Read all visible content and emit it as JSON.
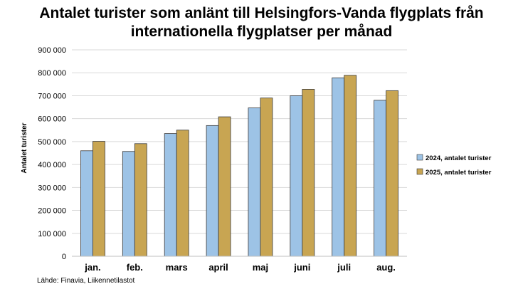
{
  "chart_data": {
    "type": "bar",
    "title": [
      "Antalet turister som anlänt till Helsingfors-Vanda flygplats från",
      "internationella flygplatser per månad"
    ],
    "xlabel": "",
    "ylabel": "Antalet turister",
    "categories": [
      "jan.",
      "feb.",
      "mars",
      "april",
      "maj",
      "juni",
      "juli",
      "aug."
    ],
    "ylim": [
      0,
      900000
    ],
    "yticks": [
      0,
      100000,
      200000,
      300000,
      400000,
      500000,
      600000,
      700000,
      800000,
      900000
    ],
    "ytick_labels": [
      "0",
      "100 000",
      "200 000",
      "300 000",
      "400 000",
      "500 000",
      "600 000",
      "700 000",
      "800 000",
      "900 000"
    ],
    "grid": true,
    "legend_position": "right",
    "series": [
      {
        "name": "2024, antalet turister",
        "color": "#9dc3e6",
        "values": [
          460000,
          457000,
          535000,
          570000,
          647000,
          700000,
          778000,
          680000
        ]
      },
      {
        "name": "2025, antalet turister",
        "color": "#c8a552",
        "values": [
          501000,
          491000,
          550000,
          608000,
          690000,
          728000,
          789000,
          722000
        ]
      }
    ],
    "source": "Lähde: Finavia, Liikennetilastot"
  }
}
